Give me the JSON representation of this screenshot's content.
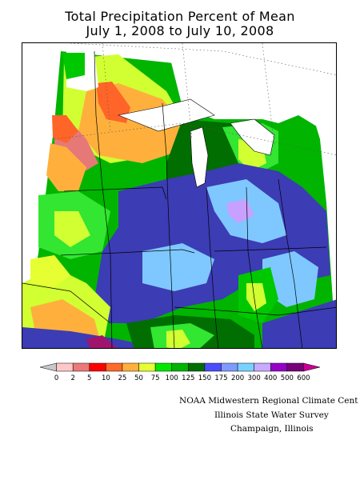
{
  "title": {
    "line1": "Total Precipitation Percent of Mean",
    "line2": "July 1, 2008 to July 10, 2008"
  },
  "legend": {
    "labels": [
      "0",
      "2",
      "5",
      "10",
      "25",
      "50",
      "75",
      "100",
      "125",
      "150",
      "175",
      "200",
      "300",
      "400",
      "500",
      "600"
    ],
    "colors": [
      "#c8c8c8",
      "#ffc8c8",
      "#ec7878",
      "#ff0000",
      "#ff6a28",
      "#ffb03c",
      "#e6ff32",
      "#00e800",
      "#00b400",
      "#006e00",
      "#4c4cff",
      "#7e9cff",
      "#78d2ff",
      "#c8aaff",
      "#9600c8",
      "#780078",
      "#c80096"
    ]
  },
  "credits": {
    "line1": "NOAA Midwestern Regional Climate Cent",
    "line2": "Illinois State Water Survey",
    "line3": "Champaign, Illinois"
  },
  "map_colors": {
    "dark_blue": "#3c3cb4",
    "light_blue": "#7ec8ff",
    "lavender": "#c8a0ff",
    "dark_green": "#006e00",
    "green": "#00c800",
    "bright_green": "#32e632",
    "yellow_green": "#d2ff32",
    "orange": "#ffb03c",
    "red_orange": "#ff6428",
    "pink": "#e67878",
    "magenta": "#a0146e"
  }
}
